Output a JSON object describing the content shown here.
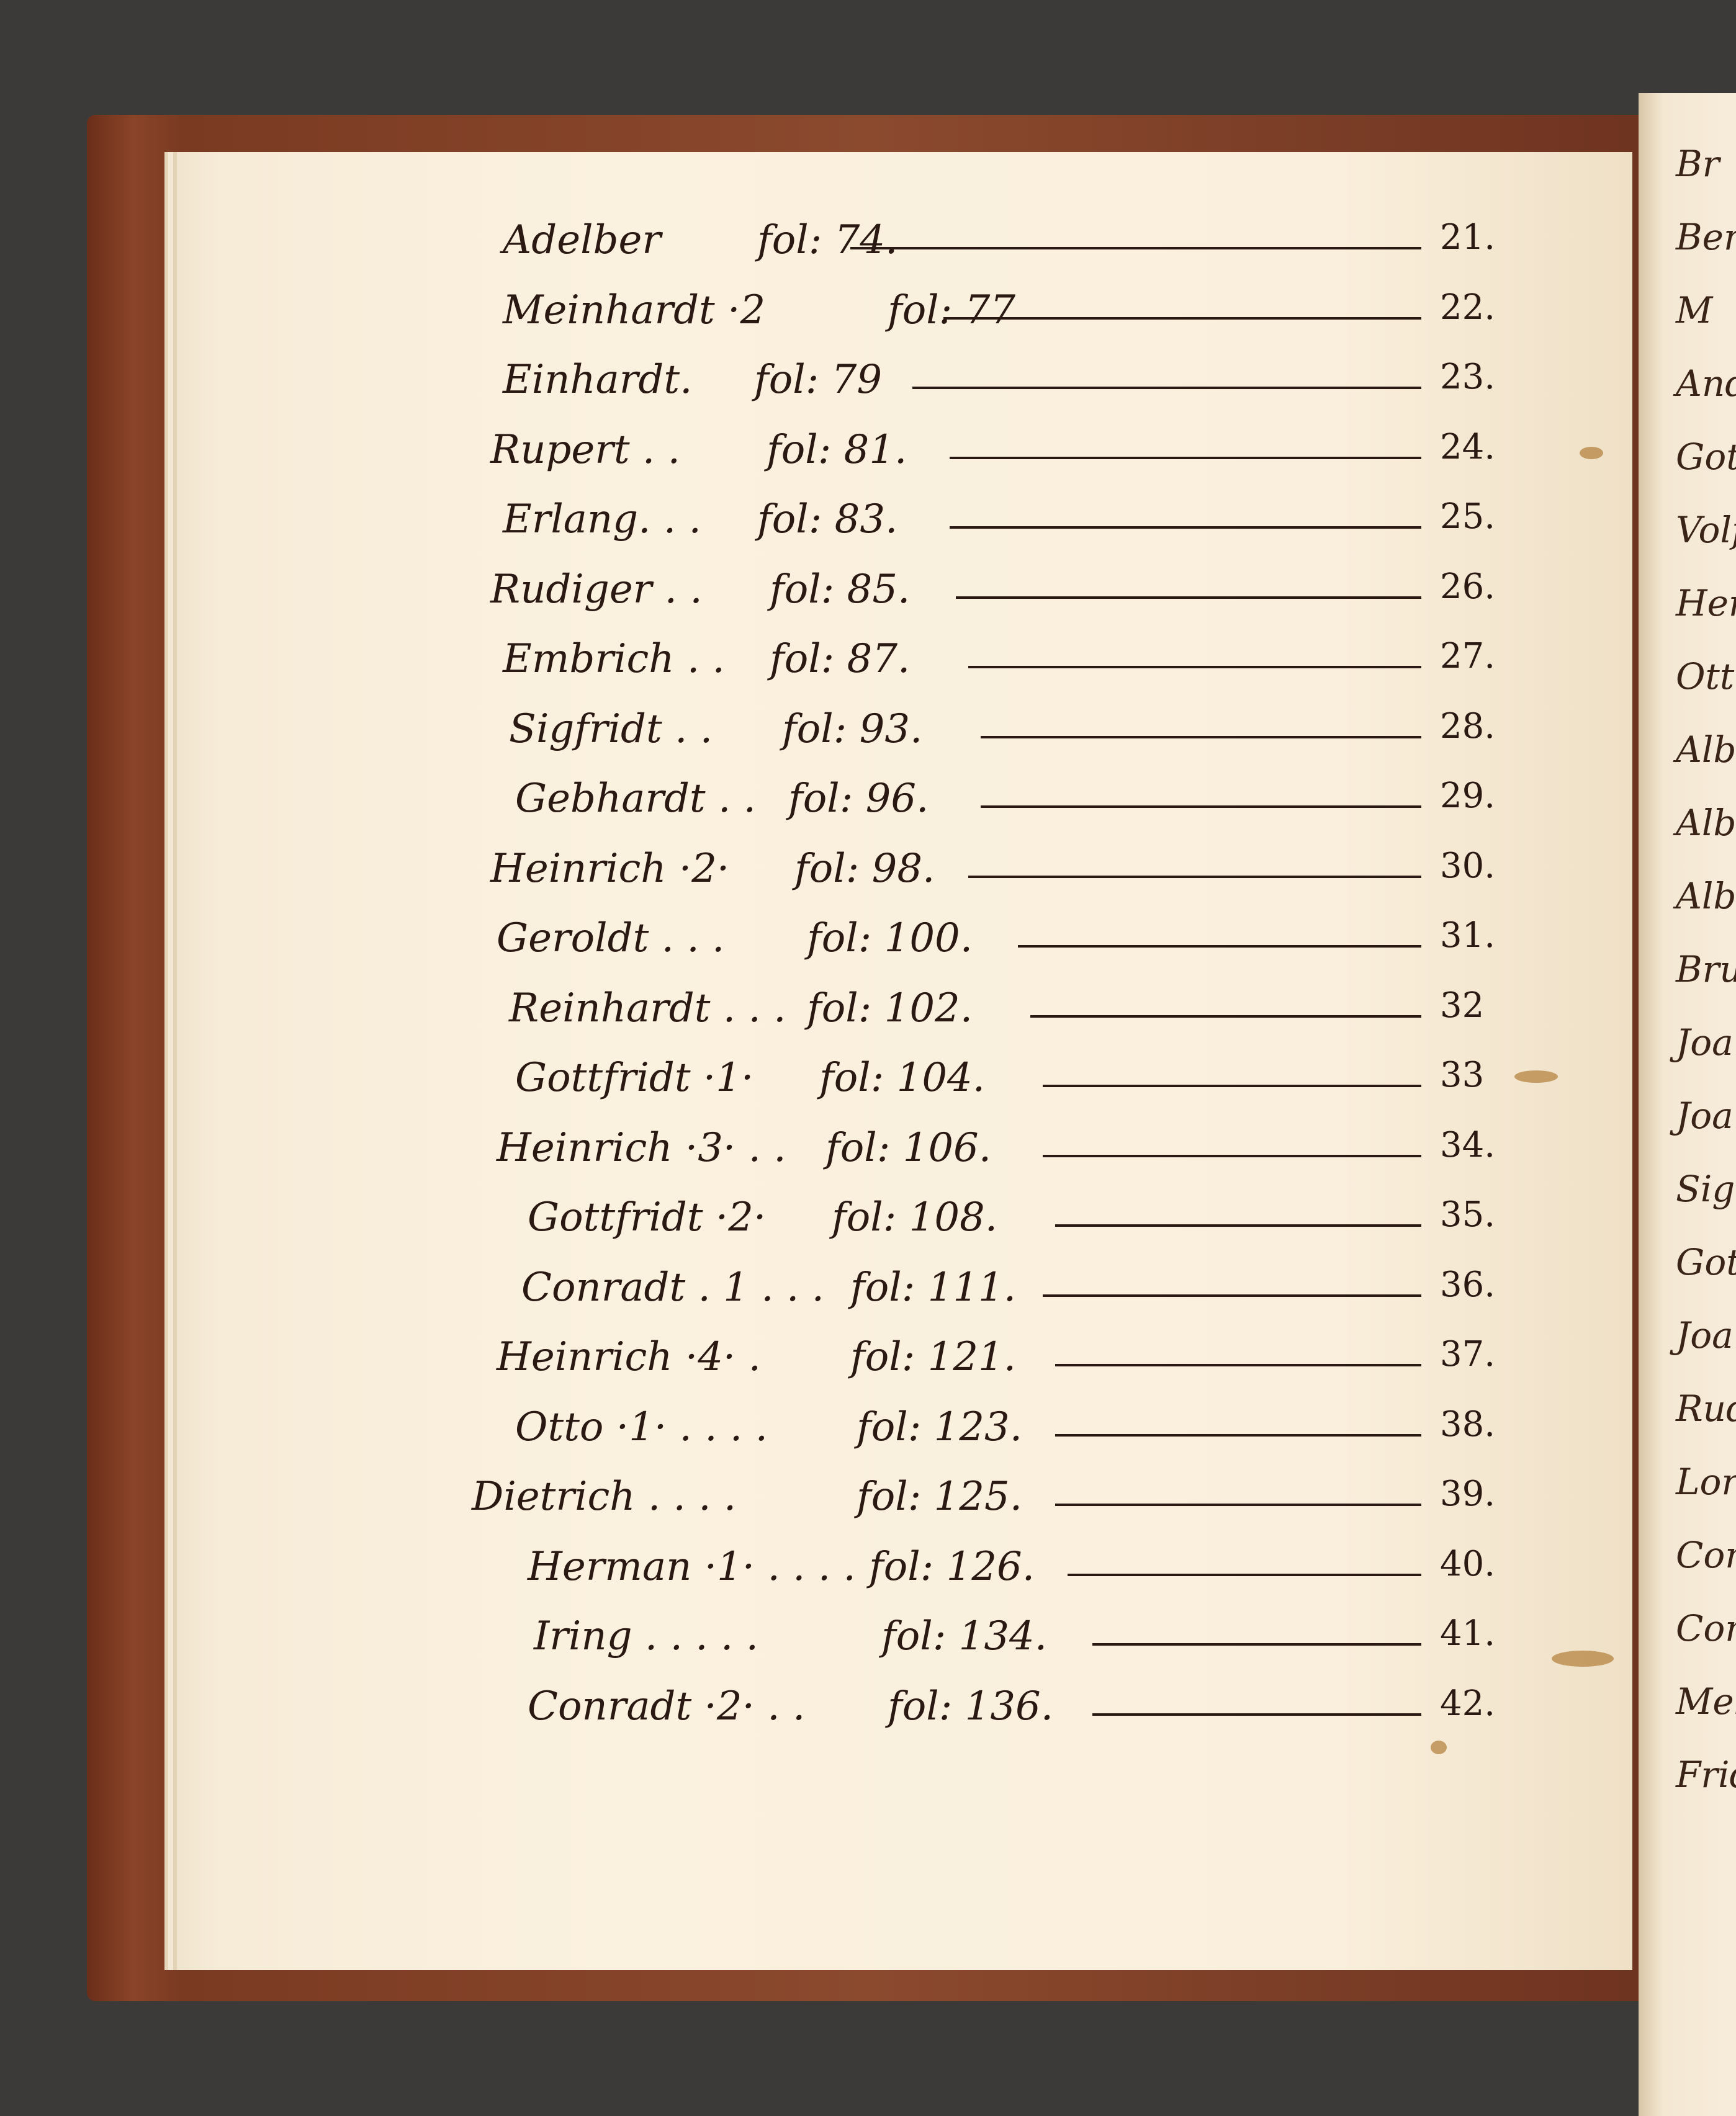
{
  "index_entries": [
    {
      "name": "Adelber",
      "fol": "fol: 74.",
      "number": "21."
    },
    {
      "name": "Meinhardt ·2",
      "fol": "fol: 77",
      "number": "22."
    },
    {
      "name": "Einhardt.",
      "fol": "fol: 79",
      "number": "23."
    },
    {
      "name": "Rupert . .",
      "fol": "fol: 81.",
      "number": "24."
    },
    {
      "name": "Erlang. . .",
      "fol": "fol: 83.",
      "number": "25."
    },
    {
      "name": "Rudiger . .",
      "fol": "fol: 85.",
      "number": "26."
    },
    {
      "name": "Embrich . .",
      "fol": "fol: 87.",
      "number": "27."
    },
    {
      "name": "Sigfridt . .",
      "fol": "fol: 93.",
      "number": "28."
    },
    {
      "name": "Gebhardt . .",
      "fol": "fol: 96.",
      "number": "29."
    },
    {
      "name": "Heinrich ·2·",
      "fol": "fol: 98.",
      "number": "30."
    },
    {
      "name": "Geroldt . . .",
      "fol": "fol: 100.",
      "number": "31."
    },
    {
      "name": "Reinhardt . . .",
      "fol": "fol: 102.",
      "number": "32"
    },
    {
      "name": "Gottfridt ·1·",
      "fol": "fol: 104.",
      "number": "33"
    },
    {
      "name": "Heinrich ·3· . .",
      "fol": "fol: 106.",
      "number": "34."
    },
    {
      "name": "Gottfridt ·2·",
      "fol": "fol: 108.",
      "number": "35."
    },
    {
      "name": "Conradt . 1 . . .",
      "fol": "fol: 111.",
      "number": "36."
    },
    {
      "name": "Heinrich ·4· .",
      "fol": "fol: 121.",
      "number": "37."
    },
    {
      "name": "Otto ·1· . . . .",
      "fol": "fol: 123.",
      "number": "38."
    },
    {
      "name": "Dietrich . . . .",
      "fol": "fol: 125.",
      "number": "39."
    },
    {
      "name": "Herman ·1· . . . .",
      "fol": "fol: 126.",
      "number": "40."
    },
    {
      "name": "Iring . . . . .",
      "fol": "fol: 134.",
      "number": "41."
    },
    {
      "name": "Conradt ·2· . .",
      "fol": "fol: 136.",
      "number": "42."
    }
  ],
  "right_page_fragments": [
    "Br",
    "Ber",
    "M",
    "And",
    "Got",
    "Volf",
    "Herm",
    "Ott",
    "Albr",
    "Alb",
    "Albr",
    "Bru",
    "Joan",
    "Joan",
    "Sig",
    "Gott",
    "Joan",
    "Rud",
    "Lor",
    "Con",
    "Con",
    "Mel",
    "Frid"
  ],
  "colors": {
    "ink": "#2a1912",
    "paper": "#faefdc",
    "leather": "#7a3a22",
    "background": "#3b3a38"
  }
}
